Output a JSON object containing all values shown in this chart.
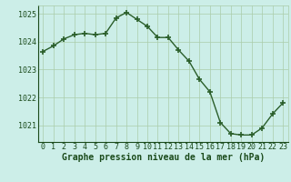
{
  "x": [
    0,
    1,
    2,
    3,
    4,
    5,
    6,
    7,
    8,
    9,
    10,
    11,
    12,
    13,
    14,
    15,
    16,
    17,
    18,
    19,
    20,
    21,
    22,
    23
  ],
  "y": [
    1023.65,
    1023.85,
    1024.1,
    1024.25,
    1024.3,
    1024.25,
    1024.3,
    1024.85,
    1025.05,
    1024.8,
    1024.55,
    1024.15,
    1024.15,
    1023.7,
    1023.3,
    1022.65,
    1022.2,
    1021.1,
    1020.7,
    1020.65,
    1020.65,
    1020.9,
    1021.4,
    1021.8
  ],
  "line_color": "#2a5e2a",
  "marker_color": "#2a5e2a",
  "bg_color": "#cceee8",
  "grid_color_major": "#aaccaa",
  "grid_color_minor": "#c4ddc4",
  "title": "Graphe pression niveau de la mer (hPa)",
  "text_color": "#1a4a1a",
  "ylim": [
    1020.4,
    1025.3
  ],
  "yticks": [
    1021,
    1022,
    1023,
    1024,
    1025
  ],
  "xticks": [
    0,
    1,
    2,
    3,
    4,
    5,
    6,
    7,
    8,
    9,
    10,
    11,
    12,
    13,
    14,
    15,
    16,
    17,
    18,
    19,
    20,
    21,
    22,
    23
  ],
  "title_fontsize": 7.0,
  "tick_fontsize": 6.0,
  "marker_size": 4,
  "line_width": 1.0
}
